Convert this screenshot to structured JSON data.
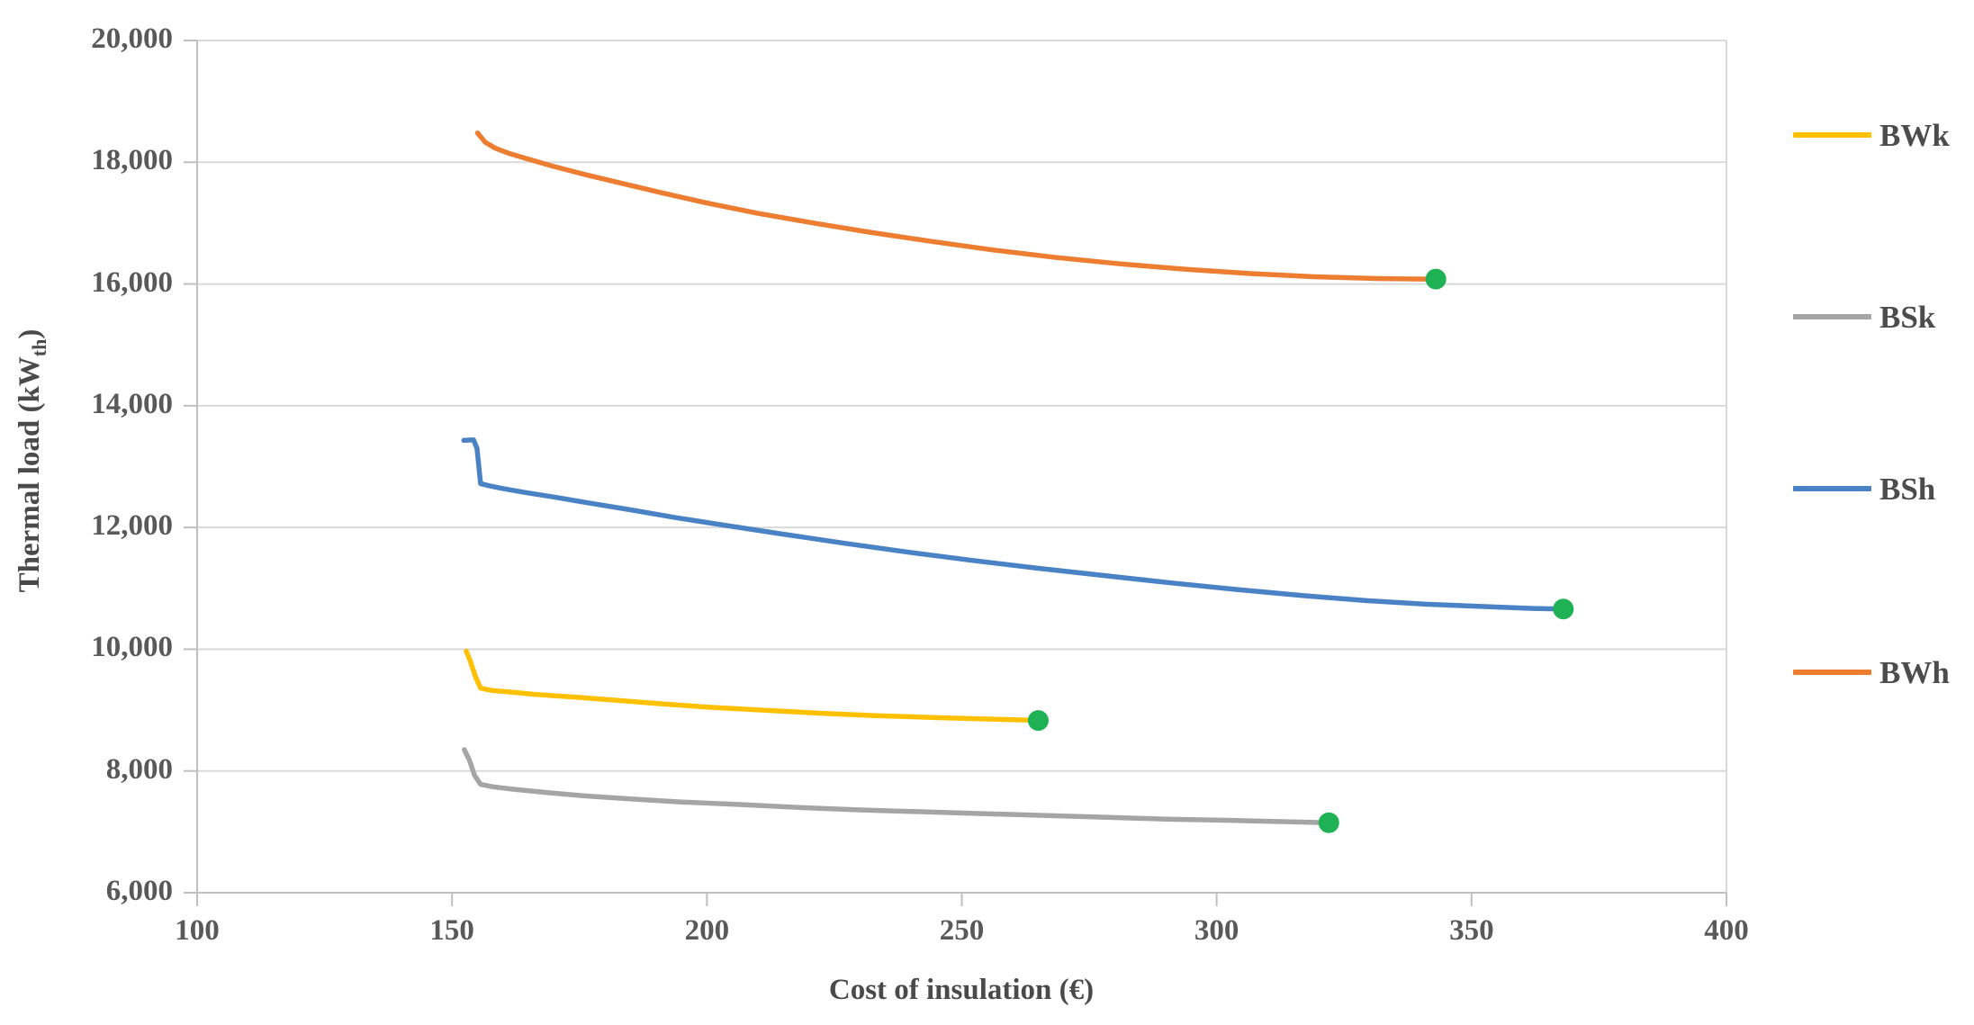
{
  "chart_data": {
    "type": "line",
    "title": "",
    "xlabel": "Cost of insulation (€)",
    "ylabel": "Thermal load (kWth)",
    "ylabel_parts": {
      "main": "Thermal load (kW",
      "sub": "th",
      "end": ")"
    },
    "xlim": [
      100,
      400
    ],
    "ylim": [
      6000,
      20000
    ],
    "grid": "horizontal",
    "legend_position": "right",
    "xticks": [
      {
        "value": 100,
        "label": "100"
      },
      {
        "value": 150,
        "label": "150"
      },
      {
        "value": 200,
        "label": "200"
      },
      {
        "value": 250,
        "label": "250"
      },
      {
        "value": 300,
        "label": "300"
      },
      {
        "value": 350,
        "label": "350"
      },
      {
        "value": 400,
        "label": "400"
      }
    ],
    "yticks": [
      {
        "value": 6000,
        "label": "6,000"
      },
      {
        "value": 8000,
        "label": "8,000"
      },
      {
        "value": 10000,
        "label": "10,000"
      },
      {
        "value": 12000,
        "label": "12,000"
      },
      {
        "value": 14000,
        "label": "14,000"
      },
      {
        "value": 16000,
        "label": "16,000"
      },
      {
        "value": 18000,
        "label": "18,000"
      },
      {
        "value": 20000,
        "label": "20,000"
      }
    ],
    "colors": {
      "grid": "#D9D9D9",
      "axis": "#BFBFBF",
      "endpoint_marker": "#1EB254"
    },
    "series": [
      {
        "name": "BWk",
        "color": "#FFC000",
        "points": [
          [
            152.8,
            9970
          ],
          [
            153.6,
            9800
          ],
          [
            154.6,
            9550
          ],
          [
            155.6,
            9360
          ],
          [
            158,
            9320
          ],
          [
            161,
            9300
          ],
          [
            166,
            9260
          ],
          [
            173,
            9220
          ],
          [
            181,
            9170
          ],
          [
            190,
            9110
          ],
          [
            200,
            9050
          ],
          [
            211,
            9000
          ],
          [
            222,
            8950
          ],
          [
            233,
            8910
          ],
          [
            244,
            8880
          ],
          [
            254,
            8855
          ],
          [
            261,
            8840
          ],
          [
            265,
            8830
          ]
        ],
        "endpoint": [
          265,
          8830
        ]
      },
      {
        "name": "BSk",
        "color": "#A5A5A5",
        "points": [
          [
            152.4,
            8350
          ],
          [
            153.4,
            8180
          ],
          [
            154.4,
            7930
          ],
          [
            155.6,
            7780
          ],
          [
            158,
            7740
          ],
          [
            162,
            7700
          ],
          [
            168,
            7650
          ],
          [
            176,
            7590
          ],
          [
            185,
            7540
          ],
          [
            195,
            7490
          ],
          [
            206,
            7450
          ],
          [
            218,
            7400
          ],
          [
            230,
            7360
          ],
          [
            242,
            7330
          ],
          [
            254,
            7300
          ],
          [
            266,
            7270
          ],
          [
            278,
            7240
          ],
          [
            290,
            7210
          ],
          [
            302,
            7190
          ],
          [
            312,
            7170
          ],
          [
            322,
            7150
          ]
        ],
        "endpoint": [
          322,
          7150
        ]
      },
      {
        "name": "BSh",
        "color": "#4A82C6",
        "points": [
          [
            152.3,
            13430
          ],
          [
            154.2,
            13440
          ],
          [
            154.9,
            13300
          ],
          [
            155.6,
            12720
          ],
          [
            157.5,
            12680
          ],
          [
            160,
            12640
          ],
          [
            164,
            12580
          ],
          [
            170,
            12500
          ],
          [
            177,
            12400
          ],
          [
            185,
            12290
          ],
          [
            194,
            12160
          ],
          [
            204,
            12030
          ],
          [
            215,
            11890
          ],
          [
            227,
            11740
          ],
          [
            239,
            11600
          ],
          [
            252,
            11460
          ],
          [
            265,
            11330
          ],
          [
            278,
            11210
          ],
          [
            291,
            11090
          ],
          [
            304,
            10980
          ],
          [
            317,
            10880
          ],
          [
            329,
            10800
          ],
          [
            341,
            10740
          ],
          [
            353,
            10700
          ],
          [
            362,
            10670
          ],
          [
            368,
            10660
          ]
        ],
        "endpoint": [
          368,
          10660
        ]
      },
      {
        "name": "BWh",
        "color": "#ED7D31",
        "points": [
          [
            155,
            18480
          ],
          [
            156.5,
            18330
          ],
          [
            158.5,
            18230
          ],
          [
            161,
            18150
          ],
          [
            165,
            18050
          ],
          [
            170,
            17930
          ],
          [
            176,
            17800
          ],
          [
            183,
            17660
          ],
          [
            191,
            17500
          ],
          [
            200,
            17330
          ],
          [
            210,
            17160
          ],
          [
            221,
            17000
          ],
          [
            232,
            16850
          ],
          [
            244,
            16700
          ],
          [
            256,
            16560
          ],
          [
            268,
            16440
          ],
          [
            281,
            16330
          ],
          [
            294,
            16240
          ],
          [
            307,
            16170
          ],
          [
            319,
            16120
          ],
          [
            331,
            16090
          ],
          [
            343,
            16080
          ]
        ],
        "endpoint": [
          343,
          16080
        ]
      }
    ],
    "legend": [
      {
        "series": "BWk"
      },
      {
        "series": "BSk"
      },
      {
        "series": "BSh"
      },
      {
        "series": "BWh"
      }
    ]
  }
}
